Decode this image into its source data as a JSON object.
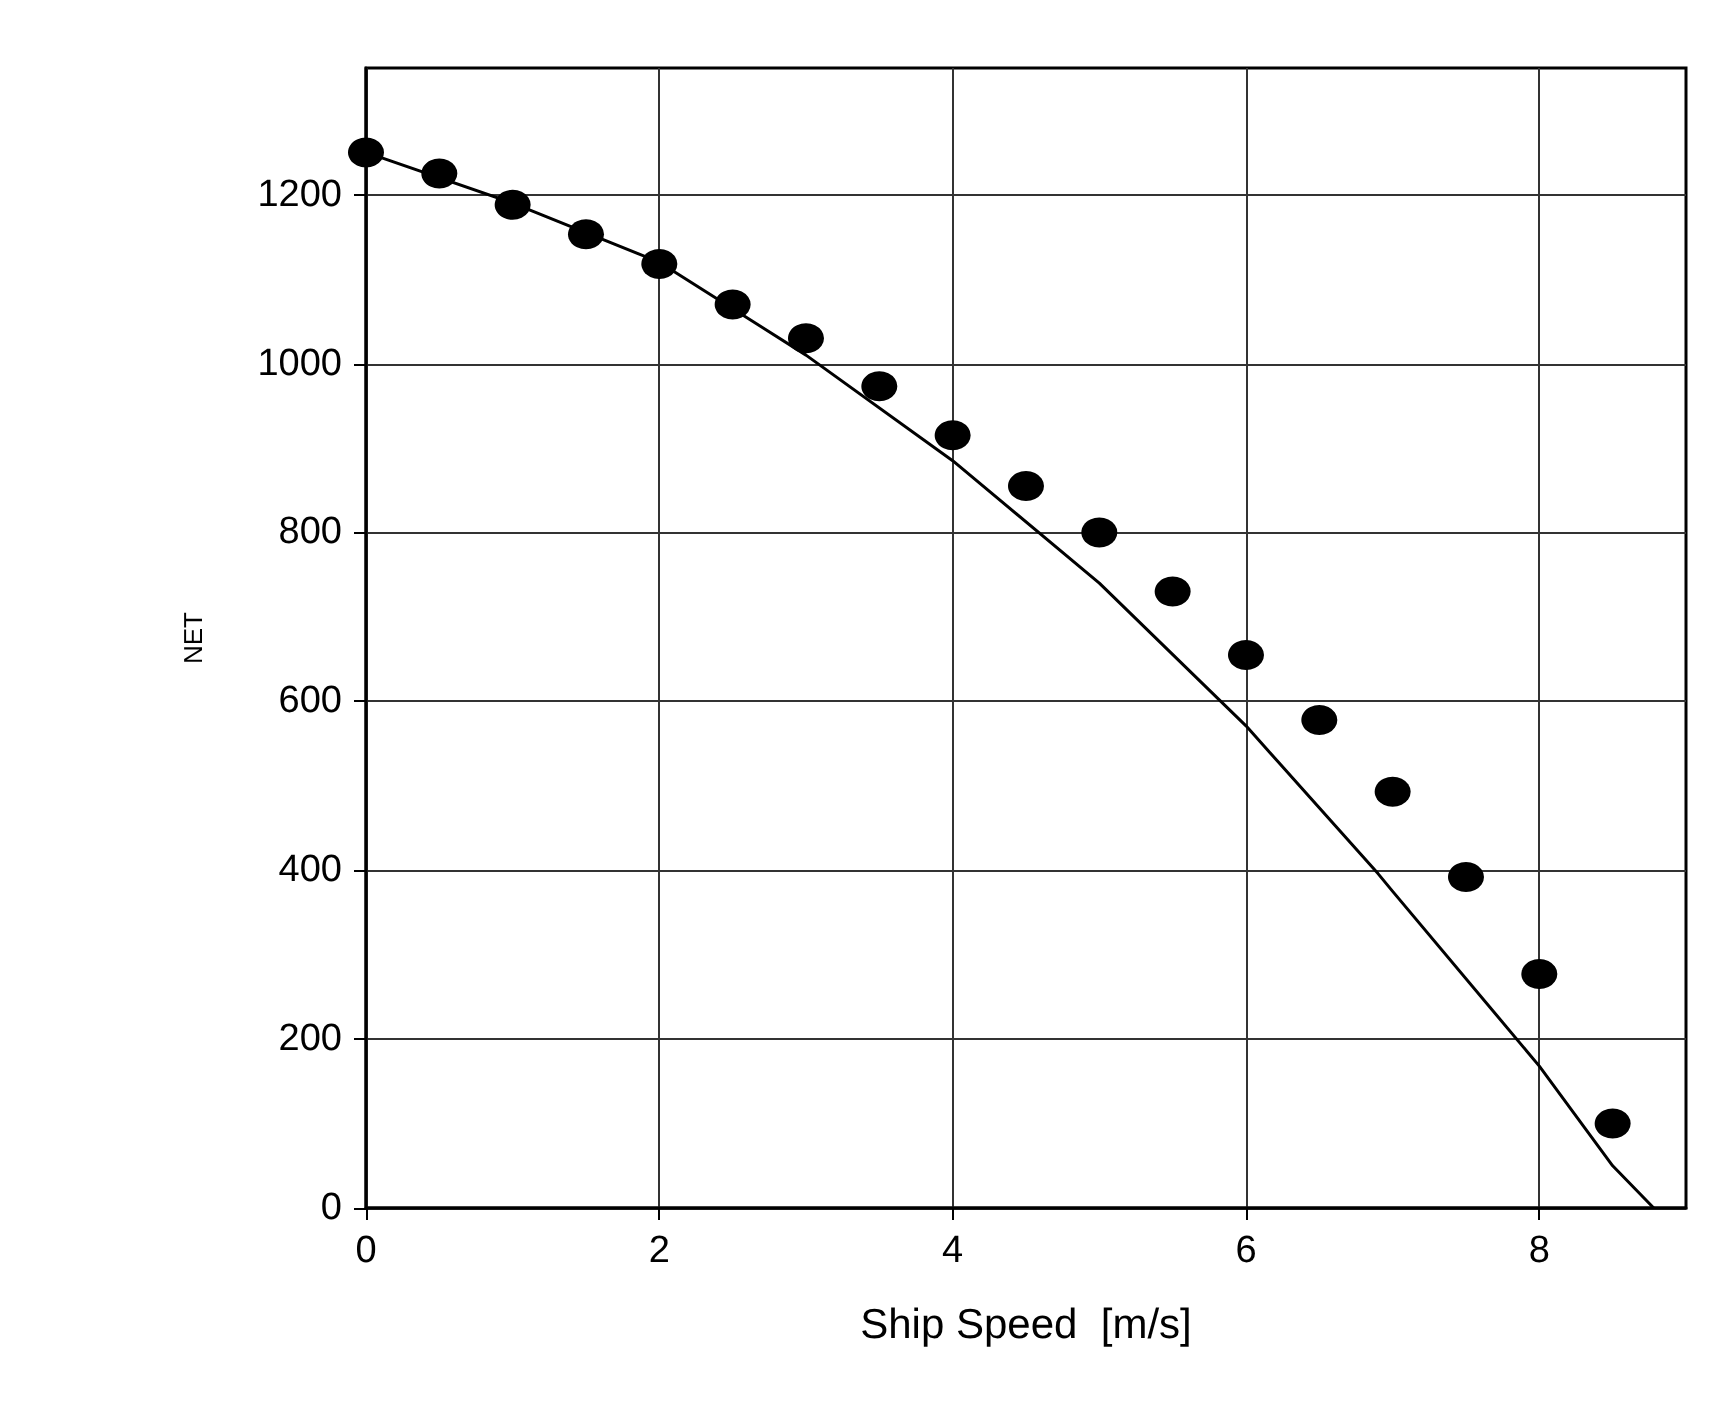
{
  "chart_data": {
    "type": "scatter",
    "xlabel": "Ship Speed  [m/s]",
    "ylabel": "NET",
    "xlim": [
      0,
      9
    ],
    "xticks": [
      0,
      2,
      4,
      6,
      8
    ],
    "ylim": [
      0,
      1350
    ],
    "yticks": [
      0,
      200,
      400,
      600,
      800,
      1000,
      1200
    ],
    "grid": true,
    "series": [
      {
        "color": "#000000",
        "marker": "circle",
        "x": [
          0,
          0.5,
          1,
          1.5,
          2,
          2.5,
          3,
          3.5,
          4,
          4.5,
          5,
          5.5,
          6,
          6.5,
          7,
          7.5,
          8,
          8.5
        ],
        "values": [
          1250,
          1225,
          1188,
          1153,
          1118,
          1070,
          1030,
          973,
          915,
          855,
          800,
          730,
          655,
          578,
          493,
          392,
          277,
          100
        ]
      },
      {
        "type": "line",
        "color": "#000000",
        "marker": "none",
        "line_style": "solid",
        "x": [
          0,
          1,
          2,
          3,
          4,
          5,
          6,
          6.9,
          7,
          8,
          8.5,
          8.78
        ],
        "values": [
          1250,
          1190,
          1120,
          1010,
          885,
          740,
          571,
          396,
          375,
          168,
          50,
          0
        ]
      }
    ]
  }
}
